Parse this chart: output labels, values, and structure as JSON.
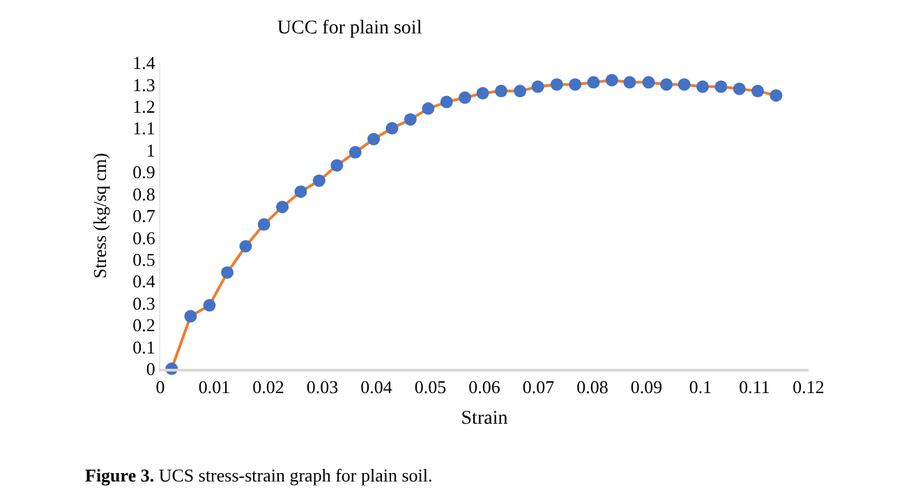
{
  "chart_data": {
    "type": "line",
    "title": "UCC for plain soil",
    "xlabel": "Strain",
    "ylabel": "Stress (kg/sq cm)",
    "annotations": [
      "Figure 3. UCS stress-strain graph for plain soil."
    ],
    "x": [
      0.0021,
      0.0056,
      0.0091,
      0.0124,
      0.0158,
      0.0192,
      0.0226,
      0.026,
      0.0294,
      0.0327,
      0.0361,
      0.0395,
      0.0429,
      0.0463,
      0.0496,
      0.053,
      0.0564,
      0.0597,
      0.0631,
      0.0666,
      0.0699,
      0.0734,
      0.0768,
      0.0802,
      0.0836,
      0.0869,
      0.0904,
      0.0937,
      0.097,
      0.1004,
      0.1038,
      0.1072,
      0.1106,
      0.114
    ],
    "series": [
      {
        "color": "#ed7d31",
        "colors": [
          "#4472c4",
          "#4472c4",
          "#4472c4",
          "#4472c4",
          "#4472c4",
          "#4472c4",
          "#4472c4",
          "#4472c4",
          "#4472c4",
          "#4472c4",
          "#4472c4",
          "#4472c4",
          "#4472c4",
          "#4472c4",
          "#4472c4",
          "#4472c4",
          "#4472c4",
          "#4472c4",
          "#4472c4",
          "#4472c4",
          "#4472c4",
          "#4472c4",
          "#4472c4",
          "#4472c4",
          "#4472c4",
          "#4472c4",
          "#4472c4",
          "#4472c4",
          "#4472c4",
          "#4472c4",
          "#4472c4",
          "#4472c4",
          "#4472c4",
          "#4472c4"
        ],
        "values": [
          0,
          0.24,
          0.29,
          0.44,
          0.56,
          0.66,
          0.74,
          0.81,
          0.86,
          0.93,
          0.99,
          1.05,
          1.1,
          1.14,
          1.19,
          1.22,
          1.24,
          1.26,
          1.27,
          1.27,
          1.29,
          1.3,
          1.3,
          1.31,
          1.32,
          1.31,
          1.31,
          1.3,
          1.3,
          1.29,
          1.29,
          1.28,
          1.27,
          1.25
        ]
      }
    ],
    "marker": "circle",
    "line_style": "solid",
    "xlim": [
      0,
      0.12
    ],
    "xticks": [
      0,
      0.01,
      0.02,
      0.03,
      0.04,
      0.05,
      0.06,
      0.07,
      0.08,
      0.09,
      0.1,
      0.11,
      0.12
    ],
    "ylim": [
      0,
      1.4
    ],
    "yticks": [
      0,
      0.1,
      0.2,
      0.3,
      0.4,
      0.5,
      0.6,
      0.7,
      0.8,
      0.9,
      1,
      1.1,
      1.2,
      1.3,
      1.4
    ]
  }
}
